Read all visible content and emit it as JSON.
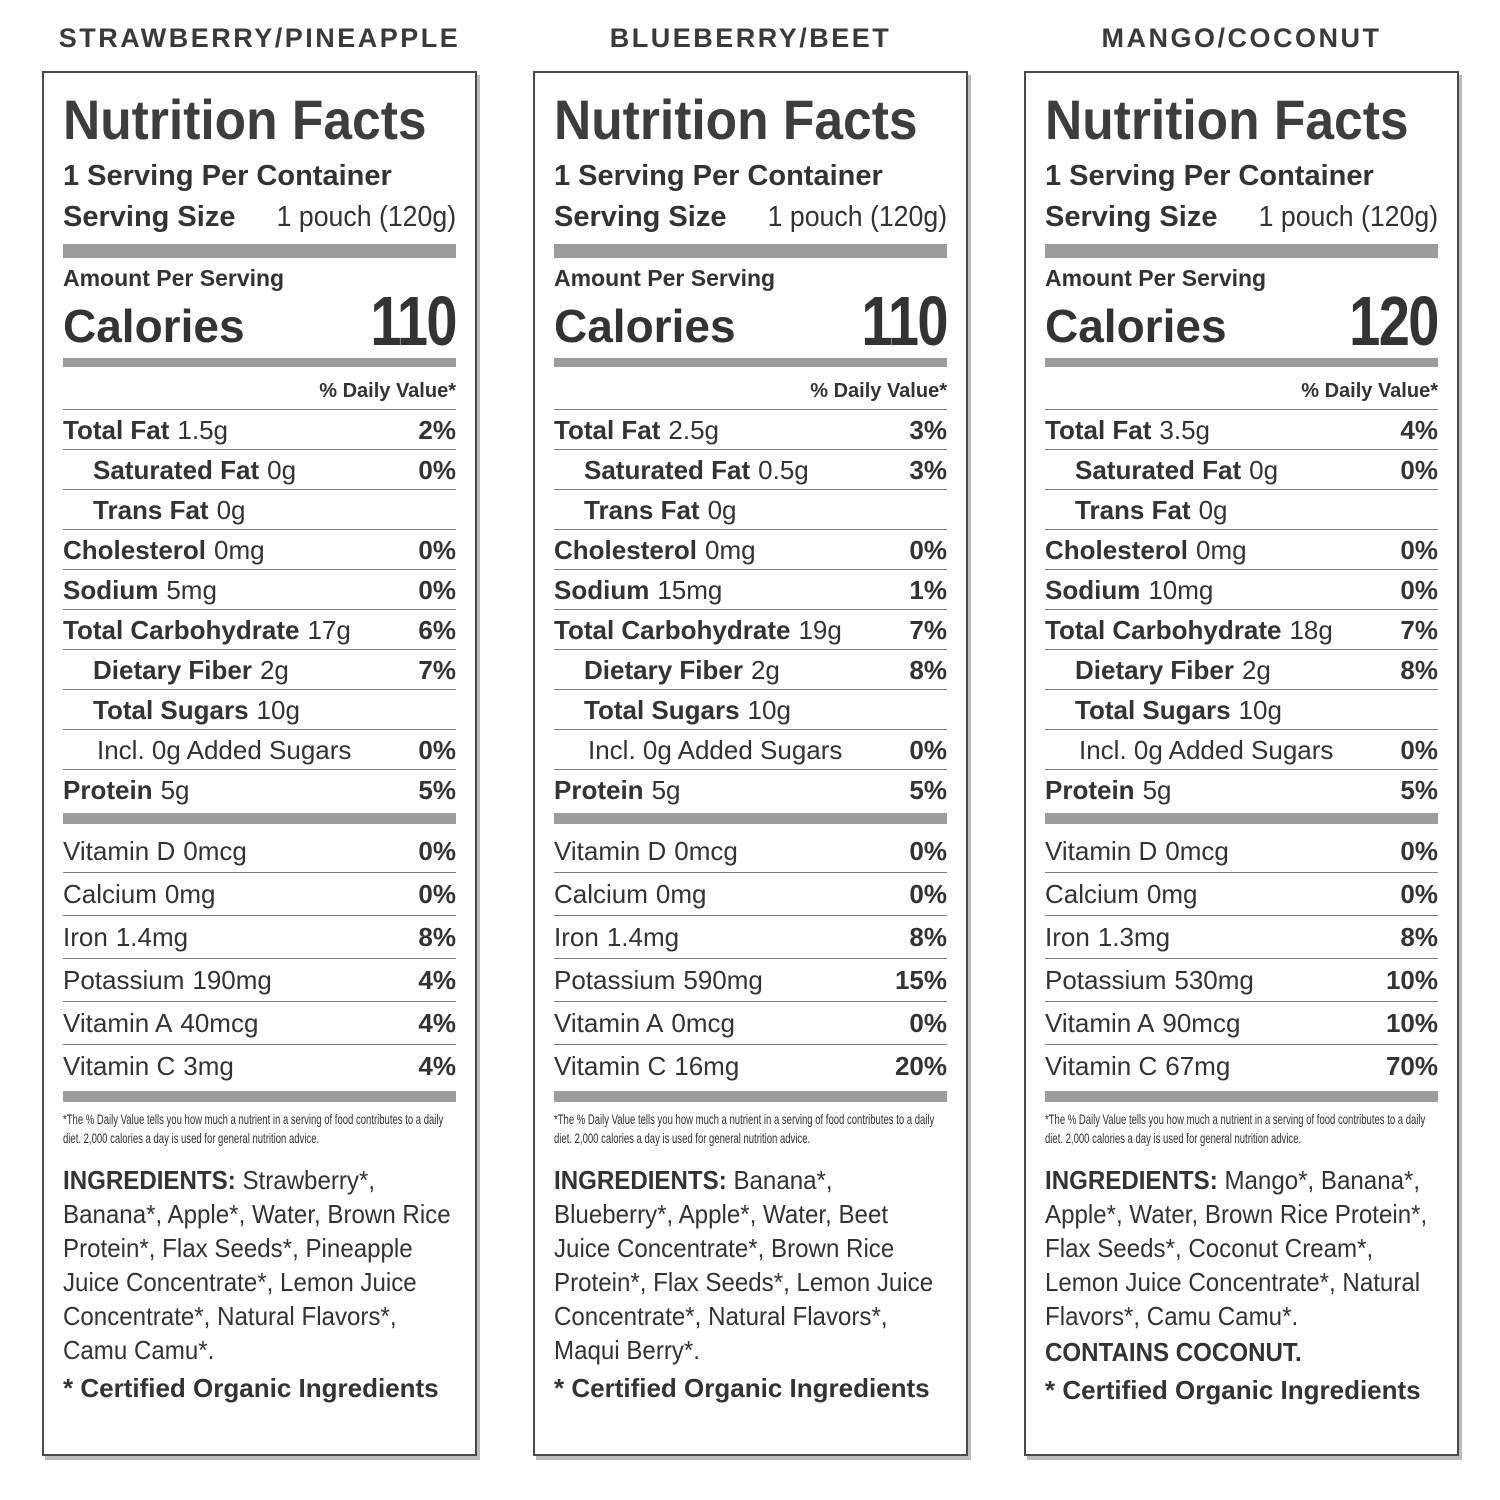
{
  "colors": {
    "text": "#333333",
    "divider_bar": "#9c9c9c",
    "hairline": "#7d7d7d",
    "box_border": "#4a4a4a",
    "box_shadow": "#bcbcbc",
    "background": "#ffffff"
  },
  "panels": [
    {
      "flavor": "STRAWBERRY/PINEAPPLE",
      "title": "Nutrition Facts",
      "servings_per_container": "1 Serving Per Container",
      "serving_size_label": "Serving Size",
      "serving_size_value": "1 pouch (120g)",
      "amount_per_serving": "Amount Per Serving",
      "calories_label": "Calories",
      "calories_value": "110",
      "daily_value_header": "% Daily Value*",
      "rows": [
        {
          "name": "Total Fat",
          "amount": "1.5g",
          "dv": "2%",
          "indent": 0,
          "bold": true
        },
        {
          "name": "Saturated Fat",
          "amount": "0g",
          "dv": "0%",
          "indent": 1,
          "bold": true
        },
        {
          "name": "Trans Fat",
          "amount": "0g",
          "dv": "",
          "indent": 1,
          "bold": true
        },
        {
          "name": "Cholesterol",
          "amount": "0mg",
          "dv": "0%",
          "indent": 0,
          "bold": true
        },
        {
          "name": "Sodium",
          "amount": "5mg",
          "dv": "0%",
          "indent": 0,
          "bold": true
        },
        {
          "name": "Total Carbohydrate",
          "amount": "17g",
          "dv": "6%",
          "indent": 0,
          "bold": true
        },
        {
          "name": "Dietary Fiber",
          "amount": "2g",
          "dv": "7%",
          "indent": 1,
          "bold": true
        },
        {
          "name": "Total Sugars",
          "amount": "10g",
          "dv": "",
          "indent": 1,
          "bold": true
        },
        {
          "name": "Incl. 0g Added Sugars",
          "amount": "",
          "dv": "0%",
          "indent": 2,
          "bold": false
        },
        {
          "name": "Protein",
          "amount": "5g",
          "dv": "5%",
          "indent": 0,
          "bold": true
        }
      ],
      "vitamins": [
        {
          "name": "Vitamin D",
          "amount": "0mcg",
          "dv": "0%"
        },
        {
          "name": "Calcium",
          "amount": "0mg",
          "dv": "0%"
        },
        {
          "name": "Iron",
          "amount": "1.4mg",
          "dv": "8%"
        },
        {
          "name": "Potassium",
          "amount": "190mg",
          "dv": "4%"
        },
        {
          "name": "Vitamin A",
          "amount": "40mcg",
          "dv": "4%"
        },
        {
          "name": "Vitamin C",
          "amount": "3mg",
          "dv": "4%"
        }
      ],
      "footnote": "*The % Daily Value tells you how much a nutrient in a serving of food contributes to a daily diet. 2,000 calories a day is used for general nutrition advice.",
      "ingredients_label": "INGREDIENTS:",
      "ingredients": "Strawberry*, Banana*, Apple*, Water, Brown Rice Protein*, Flax Seeds*, Pineapple Juice Concentrate*, Lemon Juice Concentrate*,  Natural Flavors*, Camu Camu*.",
      "contains": "",
      "certified": "* Certified Organic Ingredients"
    },
    {
      "flavor": "BLUEBERRY/BEET",
      "title": "Nutrition Facts",
      "servings_per_container": "1 Serving Per Container",
      "serving_size_label": "Serving Size",
      "serving_size_value": "1 pouch (120g)",
      "amount_per_serving": "Amount Per Serving",
      "calories_label": "Calories",
      "calories_value": "110",
      "daily_value_header": "% Daily Value*",
      "rows": [
        {
          "name": "Total Fat",
          "amount": "2.5g",
          "dv": "3%",
          "indent": 0,
          "bold": true
        },
        {
          "name": "Saturated Fat",
          "amount": "0.5g",
          "dv": "3%",
          "indent": 1,
          "bold": true
        },
        {
          "name": "Trans Fat",
          "amount": "0g",
          "dv": "",
          "indent": 1,
          "bold": true
        },
        {
          "name": "Cholesterol",
          "amount": "0mg",
          "dv": "0%",
          "indent": 0,
          "bold": true
        },
        {
          "name": "Sodium",
          "amount": "15mg",
          "dv": "1%",
          "indent": 0,
          "bold": true
        },
        {
          "name": "Total Carbohydrate",
          "amount": "19g",
          "dv": "7%",
          "indent": 0,
          "bold": true
        },
        {
          "name": "Dietary Fiber",
          "amount": "2g",
          "dv": "8%",
          "indent": 1,
          "bold": true
        },
        {
          "name": "Total Sugars",
          "amount": "10g",
          "dv": "",
          "indent": 1,
          "bold": true
        },
        {
          "name": "Incl. 0g Added Sugars",
          "amount": "",
          "dv": "0%",
          "indent": 2,
          "bold": false
        },
        {
          "name": "Protein",
          "amount": "5g",
          "dv": "5%",
          "indent": 0,
          "bold": true
        }
      ],
      "vitamins": [
        {
          "name": "Vitamin D",
          "amount": "0mcg",
          "dv": "0%"
        },
        {
          "name": "Calcium",
          "amount": "0mg",
          "dv": "0%"
        },
        {
          "name": "Iron",
          "amount": "1.4mg",
          "dv": "8%"
        },
        {
          "name": "Potassium",
          "amount": "590mg",
          "dv": "15%"
        },
        {
          "name": "Vitamin A",
          "amount": "0mcg",
          "dv": "0%"
        },
        {
          "name": "Vitamin C",
          "amount": "16mg",
          "dv": "20%"
        }
      ],
      "footnote": "*The % Daily Value tells you how much a nutrient in a serving of food contributes to a daily diet. 2,000 calories a day is used for general nutrition advice.",
      "ingredients_label": "INGREDIENTS:",
      "ingredients": "Banana*, Blueberry*, Apple*, Water, Beet Juice Concentrate*, Brown Rice Protein*, Flax Seeds*, Lemon Juice Concentrate*, Natural Flavors*, Maqui Berry*.",
      "contains": "",
      "certified": "* Certified Organic Ingredients"
    },
    {
      "flavor": "MANGO/COCONUT",
      "title": "Nutrition Facts",
      "servings_per_container": "1 Serving Per Container",
      "serving_size_label": "Serving Size",
      "serving_size_value": "1 pouch (120g)",
      "amount_per_serving": "Amount Per Serving",
      "calories_label": "Calories",
      "calories_value": "120",
      "daily_value_header": "% Daily Value*",
      "rows": [
        {
          "name": "Total Fat",
          "amount": "3.5g",
          "dv": "4%",
          "indent": 0,
          "bold": true
        },
        {
          "name": "Saturated Fat",
          "amount": "0g",
          "dv": "0%",
          "indent": 1,
          "bold": true
        },
        {
          "name": "Trans Fat",
          "amount": "0g",
          "dv": "",
          "indent": 1,
          "bold": true
        },
        {
          "name": "Cholesterol",
          "amount": "0mg",
          "dv": "0%",
          "indent": 0,
          "bold": true
        },
        {
          "name": "Sodium",
          "amount": "10mg",
          "dv": "0%",
          "indent": 0,
          "bold": true
        },
        {
          "name": "Total Carbohydrate",
          "amount": "18g",
          "dv": "7%",
          "indent": 0,
          "bold": true
        },
        {
          "name": "Dietary Fiber",
          "amount": "2g",
          "dv": "8%",
          "indent": 1,
          "bold": true
        },
        {
          "name": "Total Sugars",
          "amount": "10g",
          "dv": "",
          "indent": 1,
          "bold": true
        },
        {
          "name": "Incl. 0g Added Sugars",
          "amount": "",
          "dv": "0%",
          "indent": 2,
          "bold": false
        },
        {
          "name": "Protein",
          "amount": "5g",
          "dv": "5%",
          "indent": 0,
          "bold": true
        }
      ],
      "vitamins": [
        {
          "name": "Vitamin D",
          "amount": "0mcg",
          "dv": "0%"
        },
        {
          "name": "Calcium",
          "amount": "0mg",
          "dv": "0%"
        },
        {
          "name": "Iron",
          "amount": "1.3mg",
          "dv": "8%"
        },
        {
          "name": "Potassium",
          "amount": "530mg",
          "dv": "10%"
        },
        {
          "name": "Vitamin A",
          "amount": "90mcg",
          "dv": "10%"
        },
        {
          "name": "Vitamin C",
          "amount": "67mg",
          "dv": "70%"
        }
      ],
      "footnote": "*The % Daily Value tells you how much a nutrient in a serving of food contributes to a daily diet. 2,000 calories a day is used for general nutrition advice.",
      "ingredients_label": "INGREDIENTS:",
      "ingredients": "Mango*, Banana*, Apple*, Water, Brown Rice Protein*, Flax Seeds*, Coconut Cream*, Lemon Juice Concentrate*, Natural Flavors*, Camu Camu*.",
      "contains": "CONTAINS COCONUT.",
      "certified": "* Certified Organic Ingredients"
    }
  ]
}
